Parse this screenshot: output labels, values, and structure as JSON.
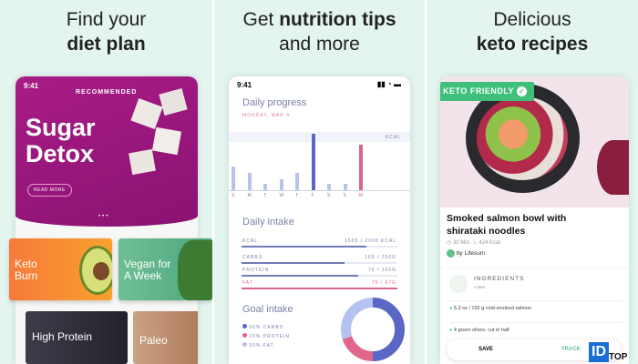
{
  "panels": [
    {
      "heading_line1": "Find your",
      "heading_line2": "diet plan",
      "phone": {
        "time": "9:41",
        "badge": "RECOMMENDED",
        "hero_title_line1": "Sugar",
        "hero_title_line2": "Detox",
        "read_more": "READ MORE",
        "hero_color": "#a0197f",
        "tiles": [
          {
            "label": "Keto Burn",
            "color": "#f88a2e"
          },
          {
            "label": "Vegan for A Week",
            "color": "#6dbf97"
          },
          {
            "label": "High Protein",
            "color": "#3b3b48"
          },
          {
            "label": "Paleo",
            "color": "#c89a7a"
          }
        ]
      }
    },
    {
      "heading_line1": "Get",
      "heading_bold": "nutrition tips",
      "heading_line2": "and more",
      "phone": {
        "time": "9:41",
        "progress_title": "Daily progress",
        "date": "MONDAY, MAR 4",
        "kcal_label": "KCAL",
        "days": [
          "S",
          "M",
          "T",
          "W",
          "T",
          "F",
          "S",
          "S",
          "M"
        ],
        "day_values": [
          0.42,
          0.3,
          0.12,
          0.2,
          0.3,
          1.0,
          0.12,
          0.12,
          0.8
        ],
        "intake_title": "Daily intake",
        "intake": [
          {
            "label": "KCAL",
            "value": "1605 / 2000 KCAL",
            "fraction": 0.8
          },
          {
            "label": "CARBS",
            "value": "165 / 250G",
            "fraction": 0.66
          },
          {
            "label": "PROTEIN",
            "value": "75 / 100G",
            "fraction": 0.75
          },
          {
            "label": "FAT",
            "value": "75 / 67G",
            "fraction": 1.0
          }
        ],
        "goal_title": "Goal intake",
        "goals": [
          {
            "label": "50% CARBS",
            "color": "#5a67c4",
            "percent": 50
          },
          {
            "label": "20% PROTEIN",
            "color": "#e0668a",
            "percent": 20
          },
          {
            "label": "30% FAT",
            "color": "#b3c2ee",
            "percent": 30
          }
        ]
      }
    },
    {
      "heading_line1": "Delicious",
      "heading_line2": "keto recipes",
      "phone": {
        "badge": "KETO FRIENDLY",
        "recipe_title": "Smoked salmon bowl with shirataki noodles",
        "time": "30 Min.",
        "kcal": "424 Kcal",
        "author": "by Lifesum",
        "ingredients_title": "INGREDIENTS",
        "servings": "1 serv.",
        "ingredients": [
          "5.3 oz / 150 g cold-smoked salmon",
          "4 green olives, cut in half"
        ],
        "save": "SAVE",
        "track": "TRACK",
        "accent": "#3ec07a"
      }
    }
  ],
  "watermark": {
    "id": "ID",
    "top": "TOP"
  }
}
